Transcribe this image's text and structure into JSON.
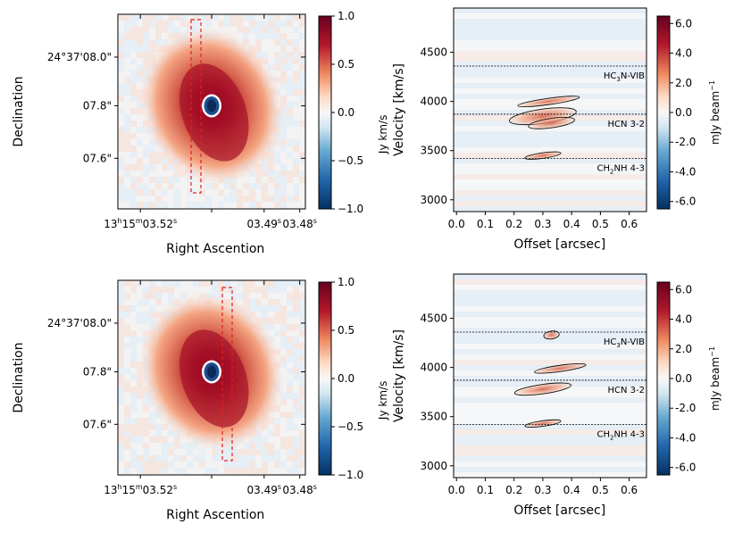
{
  "chart_data": [
    {
      "type": "heatmap",
      "panel": "top-left",
      "xlabel": "Right Ascention",
      "ylabel": "Declination",
      "x_ticks": [
        "13h15m03.52s",
        "03.49s",
        "03.48s"
      ],
      "y_ticks": [
        "24°37'08.0\"",
        "07.8\"",
        "07.6\""
      ],
      "colorbar": {
        "ticks": [
          "1.0",
          "0.5",
          "0.0",
          "−0.5",
          "−1.0"
        ],
        "range": [
          -1.0,
          1.0
        ],
        "colormap": "RdBu_r"
      },
      "slit": {
        "color": "#e02020",
        "style": "dashed"
      }
    },
    {
      "type": "heatmap",
      "panel": "top-right",
      "xlabel": "Offset [arcsec]",
      "ylabel": "Velocity [km/s]",
      "ylabel_extra": "Jy km/s",
      "x_ticks": [
        "0.0",
        "0.1",
        "0.2",
        "0.3",
        "0.4",
        "0.5",
        "0.6"
      ],
      "xlim": [
        -0.01,
        0.66
      ],
      "y_ticks": [
        "3000",
        "3500",
        "4000",
        "4500"
      ],
      "ylim": [
        2880,
        4950
      ],
      "colorbar": {
        "label": "mJy beam−1",
        "ticks": [
          "6.0",
          "4.0",
          "2.0",
          "0.0",
          "-2.0",
          "-4.0",
          "-6.0"
        ],
        "range": [
          -6.5,
          6.5
        ]
      },
      "lines": [
        {
          "label": "HC3N-VIB",
          "velocity": 4360
        },
        {
          "label": "HCN 3-2",
          "velocity": 3870
        },
        {
          "label": "CH2NH 4-3",
          "velocity": 3420
        }
      ]
    },
    {
      "type": "heatmap",
      "panel": "bottom-left",
      "xlabel": "Right Ascention",
      "ylabel": "Declination",
      "x_ticks": [
        "13h15m03.52s",
        "03.49s",
        "03.48s"
      ],
      "y_ticks": [
        "24°37'08.0\"",
        "07.8\"",
        "07.6\""
      ],
      "colorbar": {
        "ticks": [
          "1.0",
          "0.5",
          "0.0",
          "−0.5",
          "−1.0"
        ],
        "range": [
          -1.0,
          1.0
        ],
        "colormap": "RdBu_r"
      },
      "slit": {
        "color": "#e02020",
        "style": "dashed"
      }
    },
    {
      "type": "heatmap",
      "panel": "bottom-right",
      "xlabel": "Offset [arcsec]",
      "ylabel": "Velocity [km/s]",
      "ylabel_extra": "Jy km/s",
      "x_ticks": [
        "0.0",
        "0.1",
        "0.2",
        "0.3",
        "0.4",
        "0.5",
        "0.6"
      ],
      "xlim": [
        -0.01,
        0.66
      ],
      "y_ticks": [
        "3000",
        "3500",
        "4000",
        "4500"
      ],
      "ylim": [
        2880,
        4950
      ],
      "colorbar": {
        "label": "mJy beam−1",
        "ticks": [
          "6.0",
          "4.0",
          "2.0",
          "0.0",
          "-2.0",
          "-4.0",
          "-6.0"
        ],
        "range": [
          -6.5,
          6.5
        ]
      },
      "lines": [
        {
          "label": "HC3N-VIB",
          "velocity": 4360
        },
        {
          "label": "HCN 3-2",
          "velocity": 3870
        },
        {
          "label": "CH2NH 4-3",
          "velocity": 3420
        }
      ]
    }
  ]
}
